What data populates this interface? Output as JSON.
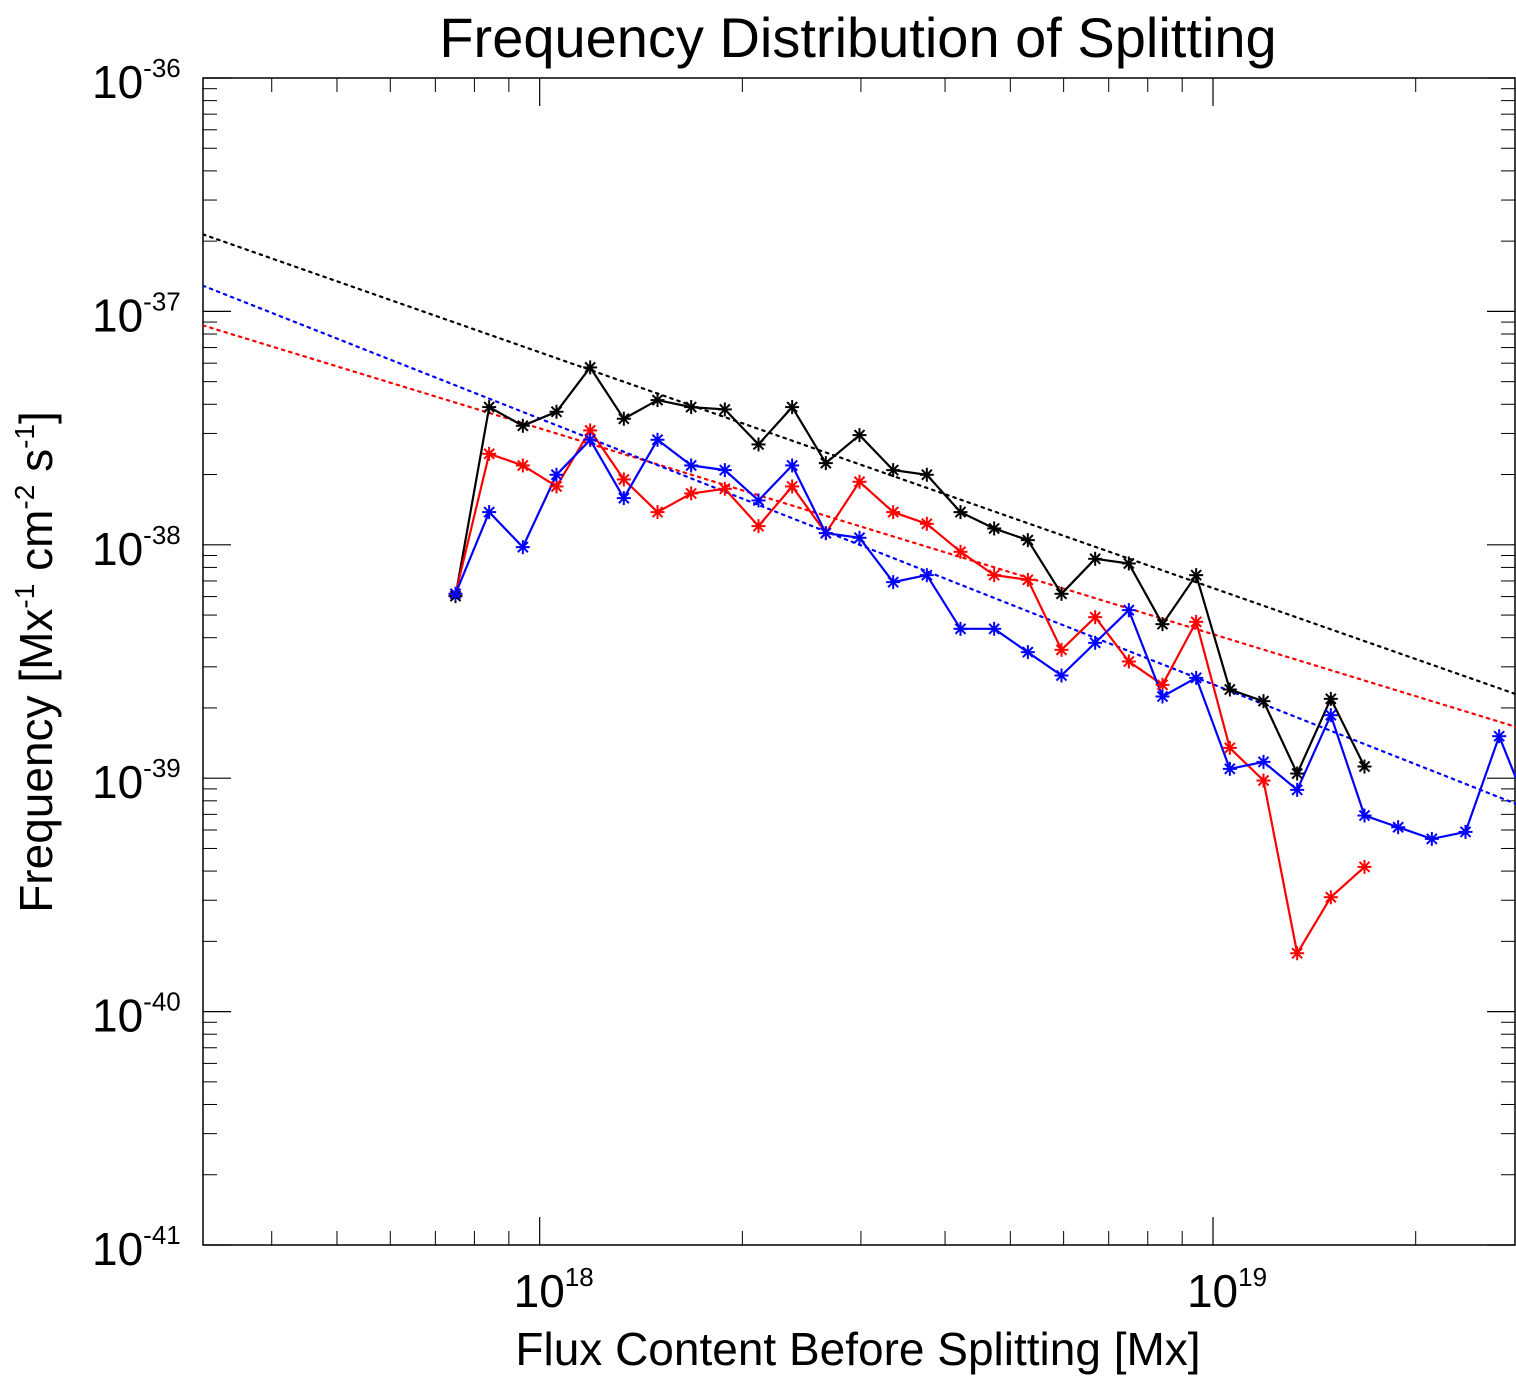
{
  "chart_data": {
    "type": "line",
    "title": "Frequency Distribution of Splitting",
    "xlabel": "Flux Content Before Splitting [Mx]",
    "ylabel": {
      "parts": [
        {
          "text": "Frequency [Mx"
        },
        {
          "text": "-1",
          "sup": true
        },
        {
          "text": " cm"
        },
        {
          "text": "-2",
          "sup": true
        },
        {
          "text": " s"
        },
        {
          "text": "-1",
          "sup": true
        },
        {
          "text": "]"
        }
      ]
    },
    "xscale": "log",
    "yscale": "log",
    "xlim_log10": [
      17.5,
      19.45
    ],
    "ylim_log10": [
      -41,
      -36
    ],
    "x_ticks": [
      {
        "base": "10",
        "exp": "18",
        "log10": 18
      },
      {
        "base": "10",
        "exp": "19",
        "log10": 19
      }
    ],
    "y_ticks": [
      {
        "base": "10",
        "exp": "-36",
        "log10": -36
      },
      {
        "base": "10",
        "exp": "-37",
        "log10": -37
      },
      {
        "base": "10",
        "exp": "-38",
        "log10": -38
      },
      {
        "base": "10",
        "exp": "-39",
        "log10": -39
      },
      {
        "base": "10",
        "exp": "-40",
        "log10": -40
      },
      {
        "base": "10",
        "exp": "-41",
        "log10": -41
      }
    ],
    "grid": false,
    "series": [
      {
        "name": "black",
        "color": "#000000",
        "points": [
          [
            17.875,
            -38.22
          ],
          [
            17.925,
            -37.41
          ],
          [
            17.975,
            -37.49
          ],
          [
            18.025,
            -37.43
          ],
          [
            18.075,
            -37.24
          ],
          [
            18.125,
            -37.46
          ],
          [
            18.175,
            -37.38
          ],
          [
            18.225,
            -37.41
          ],
          [
            18.275,
            -37.42
          ],
          [
            18.325,
            -37.57
          ],
          [
            18.375,
            -37.41
          ],
          [
            18.425,
            -37.65
          ],
          [
            18.475,
            -37.53
          ],
          [
            18.525,
            -37.68
          ],
          [
            18.575,
            -37.7
          ],
          [
            18.625,
            -37.86
          ],
          [
            18.675,
            -37.93
          ],
          [
            18.725,
            -37.98
          ],
          [
            18.775,
            -38.21
          ],
          [
            18.825,
            -38.06
          ],
          [
            18.875,
            -38.08
          ],
          [
            18.925,
            -38.34
          ],
          [
            18.975,
            -38.13
          ],
          [
            19.025,
            -38.62
          ],
          [
            19.075,
            -38.67
          ],
          [
            19.125,
            -38.98
          ],
          [
            19.175,
            -38.66
          ],
          [
            19.225,
            -38.95
          ]
        ]
      },
      {
        "name": "red",
        "color": "#ff0000",
        "points": [
          [
            17.875,
            -38.21
          ],
          [
            17.925,
            -37.61
          ],
          [
            17.975,
            -37.66
          ],
          [
            18.025,
            -37.75
          ],
          [
            18.075,
            -37.51
          ],
          [
            18.125,
            -37.72
          ],
          [
            18.175,
            -37.86
          ],
          [
            18.225,
            -37.78
          ],
          [
            18.275,
            -37.76
          ],
          [
            18.325,
            -37.92
          ],
          [
            18.375,
            -37.75
          ],
          [
            18.425,
            -37.95
          ],
          [
            18.475,
            -37.73
          ],
          [
            18.525,
            -37.86
          ],
          [
            18.575,
            -37.91
          ],
          [
            18.625,
            -38.03
          ],
          [
            18.675,
            -38.13
          ],
          [
            18.725,
            -38.15
          ],
          [
            18.775,
            -38.45
          ],
          [
            18.825,
            -38.31
          ],
          [
            18.875,
            -38.5
          ],
          [
            18.925,
            -38.6
          ],
          [
            18.975,
            -38.33
          ],
          [
            19.025,
            -38.87
          ],
          [
            19.075,
            -39.01
          ],
          [
            19.125,
            -39.75
          ],
          [
            19.175,
            -39.51
          ],
          [
            19.225,
            -39.38
          ]
        ]
      },
      {
        "name": "blue",
        "color": "#0000ff",
        "points": [
          [
            17.875,
            -38.21
          ],
          [
            17.925,
            -37.86
          ],
          [
            17.975,
            -38.01
          ],
          [
            18.025,
            -37.7
          ],
          [
            18.075,
            -37.55
          ],
          [
            18.125,
            -37.8
          ],
          [
            18.175,
            -37.55
          ],
          [
            18.225,
            -37.66
          ],
          [
            18.275,
            -37.68
          ],
          [
            18.325,
            -37.81
          ],
          [
            18.375,
            -37.66
          ],
          [
            18.425,
            -37.95
          ],
          [
            18.475,
            -37.97
          ],
          [
            18.525,
            -38.16
          ],
          [
            18.575,
            -38.13
          ],
          [
            18.625,
            -38.36
          ],
          [
            18.675,
            -38.36
          ],
          [
            18.725,
            -38.46
          ],
          [
            18.775,
            -38.56
          ],
          [
            18.825,
            -38.42
          ],
          [
            18.875,
            -38.28
          ],
          [
            18.925,
            -38.65
          ],
          [
            18.975,
            -38.57
          ],
          [
            19.025,
            -38.96
          ],
          [
            19.075,
            -38.93
          ],
          [
            19.125,
            -39.05
          ],
          [
            19.175,
            -38.73
          ],
          [
            19.225,
            -39.16
          ],
          [
            19.275,
            -39.21
          ],
          [
            19.325,
            -39.26
          ],
          [
            19.375,
            -39.23
          ],
          [
            19.425,
            -38.82
          ],
          [
            19.45,
            -39.0
          ]
        ]
      }
    ],
    "fit_lines": [
      {
        "name": "black-fit",
        "color": "#000000",
        "style": "dotted",
        "x": [
          17.5,
          19.45
        ],
        "y": [
          -36.67,
          -38.64
        ]
      },
      {
        "name": "red-fit",
        "color": "#ff0000",
        "style": "dotted",
        "x": [
          17.5,
          19.45
        ],
        "y": [
          -37.06,
          -38.78
        ]
      },
      {
        "name": "blue-fit",
        "color": "#0000ff",
        "style": "dotted",
        "x": [
          17.5,
          19.45
        ],
        "y": [
          -36.89,
          -39.11
        ]
      }
    ]
  }
}
